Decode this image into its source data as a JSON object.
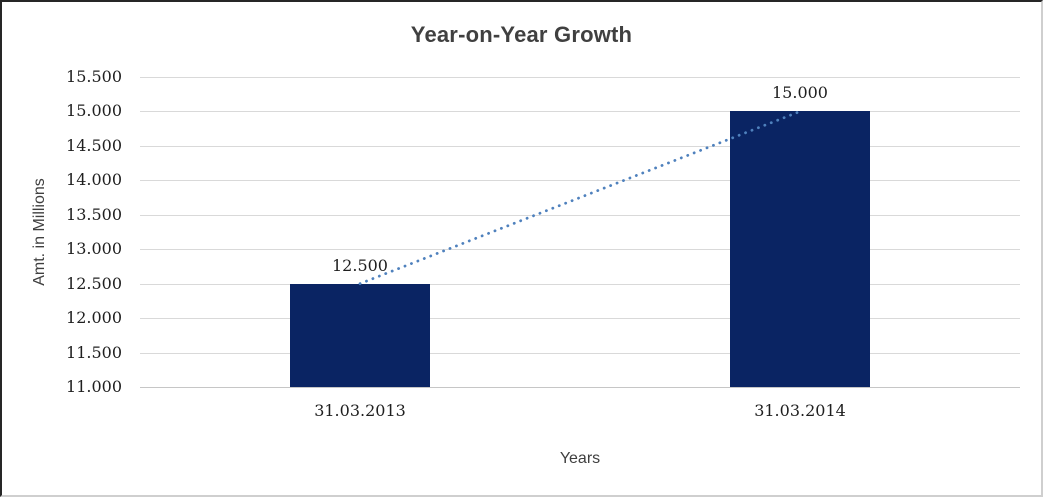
{
  "chart_data": {
    "type": "bar",
    "title": "Year-on-Year Growth",
    "xlabel": "Years",
    "ylabel": "Amt. in Millions",
    "categories": [
      "31.03.2013",
      "31.03.2014"
    ],
    "values": [
      12.5,
      15.0
    ],
    "value_labels": [
      "12.500",
      "15.000"
    ],
    "ylim": [
      11.0,
      15.5
    ],
    "ytick_step": 0.5,
    "ytick_labels": [
      "15.500",
      "15.000",
      "14.500",
      "14.000",
      "13.500",
      "13.000",
      "12.500",
      "12.000",
      "11.500",
      "11.000"
    ],
    "grid": true,
    "legend": "none",
    "bar_color": "#0a2463",
    "trendline": {
      "style": "dotted",
      "color": "#4f81bd",
      "from_category_index": 0,
      "from_value": 12.5,
      "to_category_index": 1,
      "to_value": 15.0
    }
  },
  "colors": {
    "bar": "#0a2463",
    "trendline": "#4f81bd",
    "gridline": "#d9d9d9",
    "axis_line": "#c6c6c6",
    "title_text": "#404040",
    "tick_text": "#1f1f1f",
    "axis_title_text": "#3f3f3f"
  }
}
